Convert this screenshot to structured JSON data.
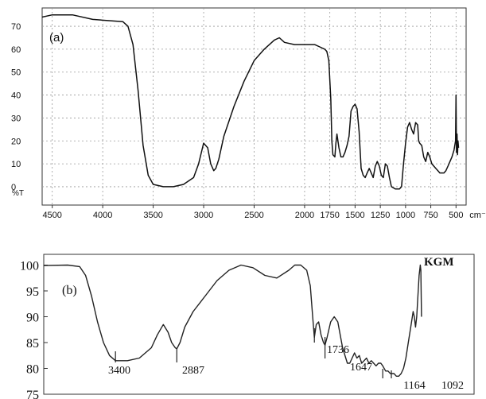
{
  "panel_a": {
    "label": "(a)",
    "y_axis_unit_label": "%T",
    "x_axis_unit_label": "cm⁻¹",
    "y_ticks": [
      "70",
      "60",
      "50",
      "40",
      "30",
      "20",
      "10",
      "0"
    ],
    "x_ticks": [
      "4500",
      "4000",
      "3500",
      "3000",
      "2500",
      "2000",
      "1750",
      "1500",
      "1250",
      "1000",
      "750",
      "500"
    ]
  },
  "panel_b": {
    "label": "(b)",
    "sample_label": "KGM",
    "y_ticks": [
      "100",
      "95",
      "90",
      "85",
      "80",
      "75"
    ],
    "peak_labels": [
      "3400",
      "2887",
      "1736",
      "1647",
      "1164",
      "1092"
    ]
  },
  "colors": {
    "line": "#111111",
    "grid": "#9a9a9a",
    "frame": "#333333"
  },
  "chart_data": [
    {
      "type": "line",
      "title": "(a)",
      "xlabel": "cm⁻¹",
      "ylabel": "%T",
      "xlim": [
        4600,
        400
      ],
      "ylim": [
        -8,
        78
      ],
      "grid": true,
      "x": [
        4600,
        4500,
        4300,
        4100,
        3950,
        3800,
        3750,
        3700,
        3650,
        3600,
        3550,
        3500,
        3400,
        3300,
        3200,
        3100,
        3050,
        3000,
        2960,
        2930,
        2900,
        2880,
        2850,
        2800,
        2700,
        2600,
        2500,
        2400,
        2300,
        2250,
        2200,
        2100,
        2000,
        1900,
        1850,
        1800,
        1780,
        1760,
        1740,
        1730,
        1720,
        1700,
        1690,
        1680,
        1660,
        1640,
        1620,
        1600,
        1580,
        1560,
        1540,
        1520,
        1500,
        1480,
        1460,
        1440,
        1420,
        1400,
        1380,
        1360,
        1340,
        1320,
        1300,
        1280,
        1260,
        1240,
        1220,
        1200,
        1180,
        1160,
        1140,
        1100,
        1060,
        1040,
        1020,
        1000,
        980,
        960,
        940,
        920,
        900,
        880,
        870,
        860,
        840,
        820,
        800,
        780,
        760,
        740,
        720,
        700,
        680,
        660,
        640,
        620,
        600,
        580,
        560,
        540,
        520,
        505,
        500,
        495,
        490,
        485,
        480,
        475
      ],
      "y": [
        74,
        75,
        75,
        73,
        72.5,
        72,
        70,
        62,
        42,
        18,
        5,
        1,
        0,
        0,
        1,
        4,
        10,
        19,
        17,
        10,
        7,
        8,
        12,
        22,
        35,
        46,
        55,
        60,
        64,
        65,
        63,
        62,
        62,
        62,
        61,
        60,
        59,
        55,
        38,
        20,
        14,
        13,
        19,
        23,
        17,
        13,
        13,
        15,
        18,
        22,
        33,
        35,
        36,
        34,
        24,
        8,
        5,
        4,
        6,
        8,
        6,
        4,
        9,
        11,
        9,
        5,
        4,
        10,
        9,
        4,
        0,
        -1,
        -1,
        0,
        10,
        19,
        26,
        28,
        25,
        23,
        28,
        27,
        20,
        19,
        18,
        13,
        11,
        15,
        13,
        10,
        9,
        8,
        7,
        6,
        6,
        6,
        7,
        9,
        11,
        13,
        16,
        20,
        40,
        15,
        23,
        14,
        20,
        17
      ]
    },
    {
      "type": "line",
      "title": "(b)",
      "legend": "KGM",
      "xlim": [
        4000,
        400
      ],
      "ylim": [
        75,
        101
      ],
      "grid": false,
      "annotations": [
        {
          "x": 3400,
          "text": "3400"
        },
        {
          "x": 2887,
          "text": "2887"
        },
        {
          "x": 1736,
          "text": "1736"
        },
        {
          "x": 1647,
          "text": "1647"
        },
        {
          "x": 1164,
          "text": "1164"
        },
        {
          "x": 1092,
          "text": "1092"
        }
      ],
      "x": [
        4000,
        3800,
        3700,
        3650,
        3600,
        3550,
        3500,
        3450,
        3400,
        3300,
        3200,
        3100,
        3050,
        3000,
        2960,
        2930,
        2900,
        2887,
        2860,
        2820,
        2750,
        2650,
        2550,
        2450,
        2350,
        2250,
        2150,
        2050,
        1950,
        1900,
        1850,
        1800,
        1770,
        1750,
        1736,
        1720,
        1700,
        1680,
        1660,
        1647,
        1630,
        1600,
        1570,
        1540,
        1500,
        1460,
        1440,
        1420,
        1400,
        1380,
        1360,
        1340,
        1320,
        1300,
        1280,
        1260,
        1240,
        1220,
        1200,
        1180,
        1164,
        1140,
        1120,
        1100,
        1092,
        1070,
        1050,
        1030,
        1010,
        990,
        970,
        950,
        930,
        910,
        900,
        890,
        880,
        870,
        860,
        850,
        845,
        840
      ],
      "y": [
        99.9,
        100,
        99.7,
        98,
        94,
        89,
        85,
        82.5,
        81.5,
        81.5,
        82,
        84,
        86.5,
        88.5,
        87,
        85,
        84,
        83.8,
        85,
        88,
        91,
        94,
        97,
        99,
        100,
        99.5,
        98,
        97.5,
        99,
        100,
        100,
        99,
        96,
        90,
        86,
        88.5,
        89,
        86.5,
        85,
        84.5,
        86,
        89,
        90,
        89,
        84,
        81,
        81,
        82,
        83,
        82,
        82.5,
        81,
        81.5,
        82,
        81,
        81.5,
        81,
        80.5,
        81,
        81,
        80.5,
        79.5,
        79.5,
        79,
        79,
        79,
        78.5,
        78.5,
        79,
        80,
        82,
        85,
        88,
        91,
        90,
        88,
        90,
        94,
        98,
        100,
        99,
        90
      ]
    }
  ]
}
